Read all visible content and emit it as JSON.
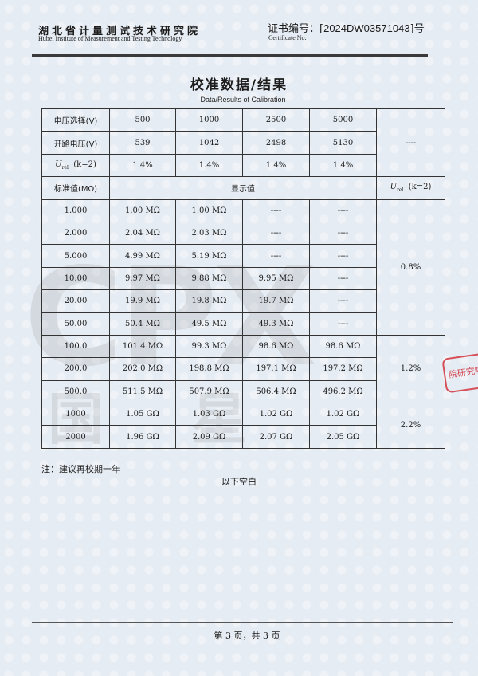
{
  "header": {
    "institute_cn": "湖北省计量测试技术研究院",
    "institute_en": "Hubei Institute of Measurement and Testing Technology",
    "cert_label_cn": "证书编号：",
    "cert_number": "2024DW03571043",
    "cert_suffix": "号",
    "cert_label_en": "Certificate No."
  },
  "title": {
    "cn": "校准数据/结果",
    "en": "Data/Results of Calibration"
  },
  "table": {
    "voltage_label": "电压选择(V)",
    "voltages": [
      "500",
      "1000",
      "2500",
      "5000"
    ],
    "open_label": "开路电压(V)",
    "open_voltages": [
      "539",
      "1042",
      "2498",
      "5130"
    ],
    "urel_label": "(k=2)",
    "urel_values": [
      "1.4%",
      "1.4%",
      "1.4%",
      "1.4%"
    ],
    "top_right": "----",
    "std_label": "标准值(MΩ)",
    "display_label": "显示值",
    "urel_col_label": "(k=2)",
    "rows": [
      {
        "std": "1.000",
        "vals": [
          "1.00 MΩ",
          "1.00 MΩ",
          "----",
          "----"
        ]
      },
      {
        "std": "2.000",
        "vals": [
          "2.04 MΩ",
          "2.03 MΩ",
          "----",
          "----"
        ]
      },
      {
        "std": "5.000",
        "vals": [
          "4.99 MΩ",
          "5.19 MΩ",
          "----",
          "----"
        ]
      },
      {
        "std": "10.00",
        "vals": [
          "9.97 MΩ",
          "9.88 MΩ",
          "9.95 MΩ",
          "----"
        ]
      },
      {
        "std": "20.00",
        "vals": [
          "19.9 MΩ",
          "19.8 MΩ",
          "19.7 MΩ",
          "----"
        ]
      },
      {
        "std": "50.00",
        "vals": [
          "50.4 MΩ",
          "49.5 MΩ",
          "49.3 MΩ",
          "----"
        ]
      },
      {
        "std": "100.0",
        "vals": [
          "101.4 MΩ",
          "99.3 MΩ",
          "98.6 MΩ",
          "98.6 MΩ"
        ]
      },
      {
        "std": "200.0",
        "vals": [
          "202.0 MΩ",
          "198.8 MΩ",
          "197.1 MΩ",
          "197.2 MΩ"
        ]
      },
      {
        "std": "500.0",
        "vals": [
          "511.5 MΩ",
          "507.9 MΩ",
          "506.4 MΩ",
          "496.2 MΩ"
        ]
      },
      {
        "std": "1000",
        "vals": [
          "1.05 GΩ",
          "1.03 GΩ",
          "1.02 GΩ",
          "1.02 GΩ"
        ]
      },
      {
        "std": "2000",
        "vals": [
          "1.96 GΩ",
          "2.09 GΩ",
          "2.07 GΩ",
          "2.05 GΩ"
        ]
      }
    ],
    "urel_groups": [
      "0.8%",
      "1.2%",
      "2.2%"
    ]
  },
  "note": "注：建议再校期一年",
  "blank_note": "以下空白",
  "footer": {
    "page": "第 3 页，共 3 页"
  },
  "watermark": {
    "text": "CPX",
    "text_cn": "国 星"
  },
  "stamp": {
    "text": "院研究院",
    "color": "#d22832"
  }
}
